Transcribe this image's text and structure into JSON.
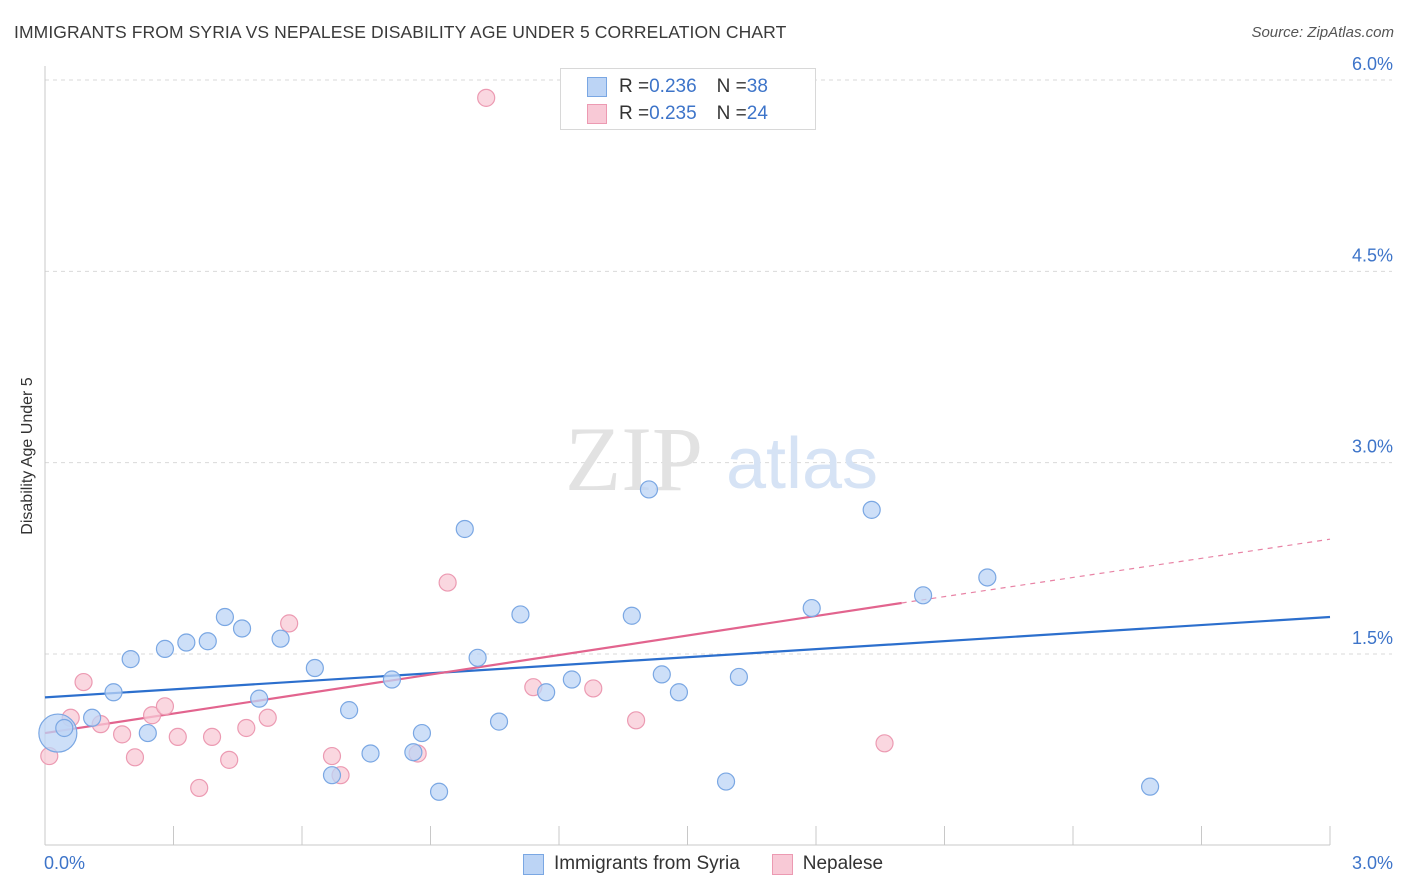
{
  "title": "IMMIGRANTS FROM SYRIA VS NEPALESE DISABILITY AGE UNDER 5 CORRELATION CHART",
  "source": "Source: ZipAtlas.com",
  "watermark": {
    "zip": "ZIP",
    "atlas": "atlas"
  },
  "legend": [
    {
      "r_label": "R = ",
      "r_value": "0.236",
      "n_label": "N = ",
      "n_value": "38"
    },
    {
      "r_label": "R = ",
      "r_value": "0.235",
      "n_label": "N = ",
      "n_value": "24"
    }
  ],
  "colors": {
    "syria_fill": "#bcd4f5",
    "syria_stroke": "#7aa7e3",
    "syria_line": "#2c6fcd",
    "nepal_fill": "#f8c9d6",
    "nepal_stroke": "#ec9ab2",
    "nepal_line": "#e2648e",
    "tick_label": "#3d74c9",
    "grid": "#d9d9d9"
  },
  "chart_data": {
    "type": "scatter",
    "title": "IMMIGRANTS FROM SYRIA VS NEPALESE DISABILITY AGE UNDER 5 CORRELATION CHART",
    "xlabel": "",
    "ylabel": "Disability Age Under 5",
    "xlim": [
      0,
      3.0
    ],
    "ylim": [
      0,
      6.2
    ],
    "x_tick_labels": [
      "0.0%",
      "3.0%"
    ],
    "y_ticks": [
      1.5,
      3.0,
      4.5,
      6.0
    ],
    "y_tick_labels": [
      "1.5%",
      "3.0%",
      "4.5%",
      "6.0%"
    ],
    "grid": true,
    "legend_position": "top-center",
    "series": [
      {
        "name": "Immigrants from Syria",
        "points": [
          {
            "x": 0.03,
            "y": 0.88,
            "big": true
          },
          {
            "x": 0.11,
            "y": 1.0
          },
          {
            "x": 0.16,
            "y": 1.2
          },
          {
            "x": 0.2,
            "y": 1.46
          },
          {
            "x": 0.24,
            "y": 0.88
          },
          {
            "x": 0.28,
            "y": 1.54
          },
          {
            "x": 0.33,
            "y": 1.59
          },
          {
            "x": 0.38,
            "y": 1.6
          },
          {
            "x": 0.42,
            "y": 1.79
          },
          {
            "x": 0.46,
            "y": 1.7
          },
          {
            "x": 0.5,
            "y": 1.15
          },
          {
            "x": 0.55,
            "y": 1.62
          },
          {
            "x": 0.63,
            "y": 1.39
          },
          {
            "x": 0.67,
            "y": 0.55
          },
          {
            "x": 0.71,
            "y": 1.06
          },
          {
            "x": 0.76,
            "y": 0.72
          },
          {
            "x": 0.81,
            "y": 1.3
          },
          {
            "x": 0.86,
            "y": 0.73
          },
          {
            "x": 0.88,
            "y": 0.88
          },
          {
            "x": 0.92,
            "y": 0.42
          },
          {
            "x": 0.98,
            "y": 2.48
          },
          {
            "x": 1.01,
            "y": 1.47
          },
          {
            "x": 1.06,
            "y": 0.97
          },
          {
            "x": 1.11,
            "y": 1.81
          },
          {
            "x": 1.17,
            "y": 1.2
          },
          {
            "x": 1.23,
            "y": 1.3
          },
          {
            "x": 1.37,
            "y": 1.8
          },
          {
            "x": 1.41,
            "y": 2.79
          },
          {
            "x": 1.44,
            "y": 1.34
          },
          {
            "x": 1.48,
            "y": 1.2
          },
          {
            "x": 1.59,
            "y": 0.5
          },
          {
            "x": 1.62,
            "y": 1.32
          },
          {
            "x": 1.79,
            "y": 1.86
          },
          {
            "x": 1.93,
            "y": 2.63
          },
          {
            "x": 2.05,
            "y": 1.96
          },
          {
            "x": 2.2,
            "y": 2.1
          },
          {
            "x": 2.58,
            "y": 0.46
          },
          {
            "x": 0.045,
            "y": 0.92
          }
        ],
        "trend": {
          "x": [
            0.0,
            3.0
          ],
          "y": [
            1.16,
            1.79
          ]
        }
      },
      {
        "name": "Nepalese",
        "points": [
          {
            "x": 0.01,
            "y": 0.7
          },
          {
            "x": 0.06,
            "y": 1.0
          },
          {
            "x": 0.09,
            "y": 1.28
          },
          {
            "x": 0.13,
            "y": 0.95
          },
          {
            "x": 0.18,
            "y": 0.87
          },
          {
            "x": 0.21,
            "y": 0.69
          },
          {
            "x": 0.25,
            "y": 1.02
          },
          {
            "x": 0.28,
            "y": 1.09
          },
          {
            "x": 0.31,
            "y": 0.85
          },
          {
            "x": 0.36,
            "y": 0.45
          },
          {
            "x": 0.39,
            "y": 0.85
          },
          {
            "x": 0.43,
            "y": 0.67
          },
          {
            "x": 0.47,
            "y": 0.92
          },
          {
            "x": 0.52,
            "y": 1.0
          },
          {
            "x": 0.57,
            "y": 1.74
          },
          {
            "x": 0.67,
            "y": 0.7
          },
          {
            "x": 0.69,
            "y": 0.55
          },
          {
            "x": 0.87,
            "y": 0.72
          },
          {
            "x": 0.94,
            "y": 2.06
          },
          {
            "x": 1.03,
            "y": 5.86
          },
          {
            "x": 1.14,
            "y": 1.24
          },
          {
            "x": 1.28,
            "y": 1.23
          },
          {
            "x": 1.38,
            "y": 0.98
          },
          {
            "x": 1.96,
            "y": 0.8
          }
        ],
        "trend": {
          "x": [
            0.0,
            2.0
          ],
          "y": [
            0.88,
            1.9
          ]
        },
        "trend_dashed_extension": {
          "x": [
            2.0,
            3.0
          ],
          "y": [
            1.9,
            2.4
          ]
        }
      }
    ]
  },
  "bottom_legend": [
    "Immigrants from Syria",
    "Nepalese"
  ]
}
